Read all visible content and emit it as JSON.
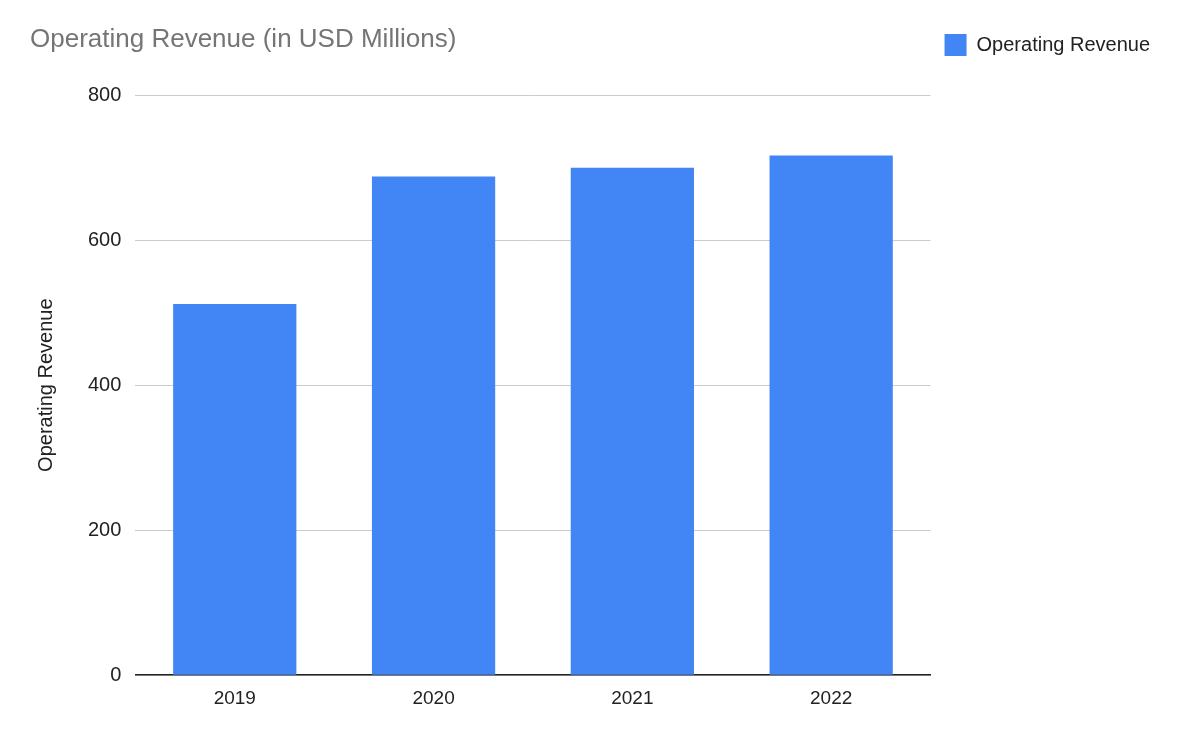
{
  "chart_data": {
    "type": "bar",
    "title": "Operating Revenue (in USD Millions)",
    "y_label": "Operating Revenue",
    "categories": [
      "2019",
      "2020",
      "2021",
      "2022"
    ],
    "series": [
      {
        "name": "Operating Revenue",
        "color": "#4285f4",
        "values": [
          512,
          688,
          700,
          717
        ]
      }
    ],
    "ylim": [
      0,
      800
    ],
    "yticks": [
      0,
      200,
      400,
      600,
      800
    ],
    "grid": true,
    "legend": "top-right"
  }
}
